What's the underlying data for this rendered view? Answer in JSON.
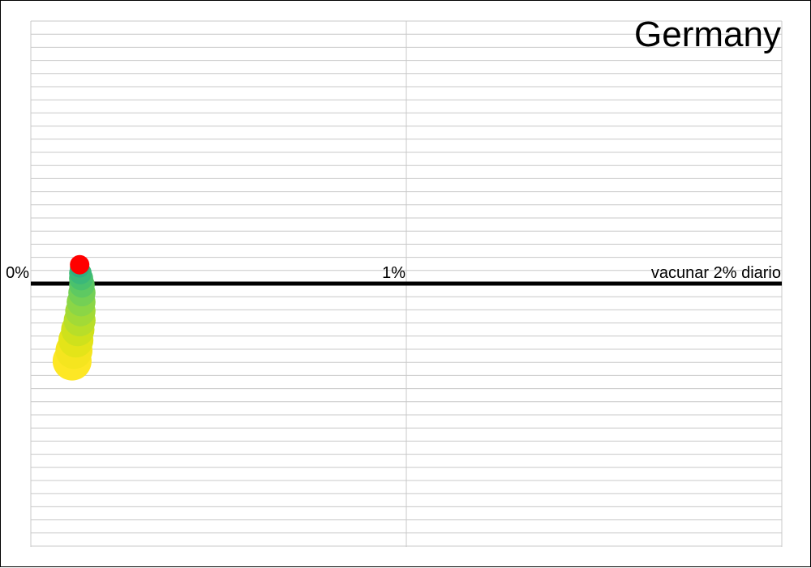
{
  "chart_data": {
    "type": "scatter",
    "title": "Germany",
    "x_ticks": [
      {
        "value": 0,
        "label": "0%"
      },
      {
        "value": 1,
        "label": "1%"
      },
      {
        "value": 2,
        "label": "vacunar 2% diario"
      }
    ],
    "xlim": [
      0,
      2
    ],
    "ylim": [
      -1,
      1
    ],
    "reference_line_y": 0,
    "grid": true,
    "points": [
      {
        "x": 0.11,
        "y": -0.295,
        "size": 1.0,
        "color": "#fde725"
      },
      {
        "x": 0.115,
        "y": -0.255,
        "size": 0.95,
        "color": "#f5e51f"
      },
      {
        "x": 0.12,
        "y": -0.215,
        "size": 0.9,
        "color": "#e4e419"
      },
      {
        "x": 0.125,
        "y": -0.175,
        "size": 0.86,
        "color": "#cfe11c"
      },
      {
        "x": 0.13,
        "y": -0.14,
        "size": 0.82,
        "color": "#b8de29"
      },
      {
        "x": 0.132,
        "y": -0.105,
        "size": 0.78,
        "color": "#a2da37"
      },
      {
        "x": 0.134,
        "y": -0.07,
        "size": 0.74,
        "color": "#8bd646"
      },
      {
        "x": 0.136,
        "y": -0.035,
        "size": 0.7,
        "color": "#74d055"
      },
      {
        "x": 0.136,
        "y": -0.005,
        "size": 0.66,
        "color": "#5ec962"
      },
      {
        "x": 0.134,
        "y": 0.02,
        "size": 0.62,
        "color": "#4ac16d"
      },
      {
        "x": 0.132,
        "y": 0.04,
        "size": 0.58,
        "color": "#3bb879"
      },
      {
        "x": 0.13,
        "y": 0.06,
        "size": 0.5,
        "color": "#2fae82"
      },
      {
        "x": 0.13,
        "y": 0.072,
        "size": 0.5,
        "color": "#ff0000"
      }
    ]
  }
}
